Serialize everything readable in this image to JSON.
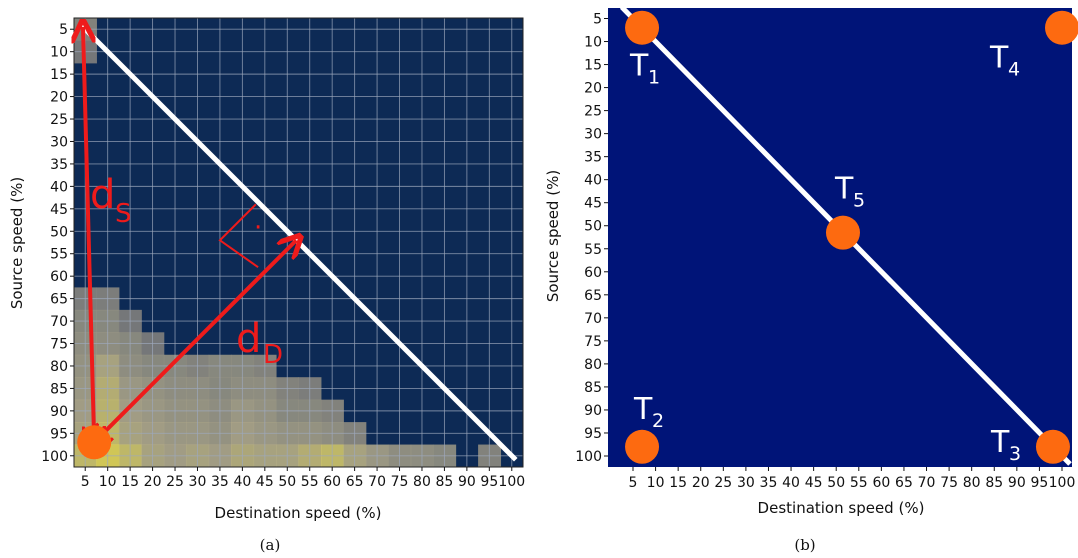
{
  "chart_data": [
    {
      "id": "a",
      "type": "heatmap",
      "caption": "(a)",
      "xlabel": "Destination speed (%)",
      "ylabel": "Source speed (%)",
      "x_ticks": [
        "5",
        "10",
        "15",
        "20",
        "25",
        "30",
        "35",
        "40",
        "45",
        "50",
        "55",
        "60",
        "65",
        "70",
        "75",
        "80",
        "85",
        "90",
        "95",
        "100"
      ],
      "y_ticks": [
        "5",
        "10",
        "15",
        "20",
        "25",
        "30",
        "35",
        "40",
        "45",
        "50",
        "55",
        "60",
        "65",
        "70",
        "75",
        "80",
        "85",
        "90",
        "95",
        "100"
      ],
      "grid": true,
      "colors": {
        "background": "#0d2a55",
        "grid": "#9ea9bd",
        "low": "#6c6f78",
        "mid": "#b1a98a",
        "high": "#f2e24a",
        "line": "#ffffff",
        "annotation": "#ee1b1b",
        "point": "#fd6a10"
      },
      "nonzero_cells": [
        {
          "x": 5,
          "y": 5,
          "v": 0.25
        },
        {
          "x": 5,
          "y": 10,
          "v": 0.15
        },
        {
          "x": 5,
          "y": 65,
          "v": 0.2
        },
        {
          "x": 10,
          "y": 65,
          "v": 0.2
        },
        {
          "x": 5,
          "y": 70,
          "v": 0.3
        },
        {
          "x": 10,
          "y": 70,
          "v": 0.3
        },
        {
          "x": 15,
          "y": 70,
          "v": 0.15
        },
        {
          "x": 5,
          "y": 75,
          "v": 0.35
        },
        {
          "x": 10,
          "y": 75,
          "v": 0.35
        },
        {
          "x": 15,
          "y": 75,
          "v": 0.3
        },
        {
          "x": 20,
          "y": 75,
          "v": 0.15
        },
        {
          "x": 5,
          "y": 80,
          "v": 0.4
        },
        {
          "x": 10,
          "y": 80,
          "v": 0.55
        },
        {
          "x": 15,
          "y": 80,
          "v": 0.35
        },
        {
          "x": 20,
          "y": 80,
          "v": 0.3
        },
        {
          "x": 25,
          "y": 80,
          "v": 0.3
        },
        {
          "x": 30,
          "y": 80,
          "v": 0.25
        },
        {
          "x": 35,
          "y": 80,
          "v": 0.3
        },
        {
          "x": 40,
          "y": 80,
          "v": 0.3
        },
        {
          "x": 45,
          "y": 80,
          "v": 0.25
        },
        {
          "x": 5,
          "y": 85,
          "v": 0.45
        },
        {
          "x": 10,
          "y": 85,
          "v": 0.65
        },
        {
          "x": 15,
          "y": 85,
          "v": 0.45
        },
        {
          "x": 20,
          "y": 85,
          "v": 0.4
        },
        {
          "x": 25,
          "y": 85,
          "v": 0.35
        },
        {
          "x": 30,
          "y": 85,
          "v": 0.35
        },
        {
          "x": 35,
          "y": 85,
          "v": 0.3
        },
        {
          "x": 40,
          "y": 85,
          "v": 0.35
        },
        {
          "x": 45,
          "y": 85,
          "v": 0.35
        },
        {
          "x": 50,
          "y": 85,
          "v": 0.25
        },
        {
          "x": 55,
          "y": 85,
          "v": 0.2
        },
        {
          "x": 5,
          "y": 90,
          "v": 0.5
        },
        {
          "x": 10,
          "y": 90,
          "v": 0.7
        },
        {
          "x": 15,
          "y": 90,
          "v": 0.5
        },
        {
          "x": 20,
          "y": 90,
          "v": 0.45
        },
        {
          "x": 25,
          "y": 90,
          "v": 0.4
        },
        {
          "x": 30,
          "y": 90,
          "v": 0.4
        },
        {
          "x": 35,
          "y": 90,
          "v": 0.35
        },
        {
          "x": 40,
          "y": 90,
          "v": 0.45
        },
        {
          "x": 45,
          "y": 90,
          "v": 0.4
        },
        {
          "x": 50,
          "y": 90,
          "v": 0.3
        },
        {
          "x": 55,
          "y": 90,
          "v": 0.3
        },
        {
          "x": 60,
          "y": 90,
          "v": 0.25
        },
        {
          "x": 5,
          "y": 95,
          "v": 0.55
        },
        {
          "x": 10,
          "y": 95,
          "v": 0.75
        },
        {
          "x": 15,
          "y": 95,
          "v": 0.55
        },
        {
          "x": 20,
          "y": 95,
          "v": 0.5
        },
        {
          "x": 25,
          "y": 95,
          "v": 0.45
        },
        {
          "x": 30,
          "y": 95,
          "v": 0.45
        },
        {
          "x": 35,
          "y": 95,
          "v": 0.4
        },
        {
          "x": 40,
          "y": 95,
          "v": 0.5
        },
        {
          "x": 45,
          "y": 95,
          "v": 0.45
        },
        {
          "x": 50,
          "y": 95,
          "v": 0.4
        },
        {
          "x": 55,
          "y": 95,
          "v": 0.4
        },
        {
          "x": 60,
          "y": 95,
          "v": 0.35
        },
        {
          "x": 65,
          "y": 95,
          "v": 0.25
        },
        {
          "x": 5,
          "y": 100,
          "v": 0.75
        },
        {
          "x": 10,
          "y": 100,
          "v": 0.9
        },
        {
          "x": 15,
          "y": 100,
          "v": 0.75
        },
        {
          "x": 20,
          "y": 100,
          "v": 0.55
        },
        {
          "x": 25,
          "y": 100,
          "v": 0.5
        },
        {
          "x": 30,
          "y": 100,
          "v": 0.55
        },
        {
          "x": 35,
          "y": 100,
          "v": 0.5
        },
        {
          "x": 40,
          "y": 100,
          "v": 0.6
        },
        {
          "x": 45,
          "y": 100,
          "v": 0.55
        },
        {
          "x": 50,
          "y": 100,
          "v": 0.55
        },
        {
          "x": 55,
          "y": 100,
          "v": 0.65
        },
        {
          "x": 60,
          "y": 100,
          "v": 0.75
        },
        {
          "x": 65,
          "y": 100,
          "v": 0.55
        },
        {
          "x": 70,
          "y": 100,
          "v": 0.45
        },
        {
          "x": 75,
          "y": 100,
          "v": 0.35
        },
        {
          "x": 80,
          "y": 100,
          "v": 0.35
        },
        {
          "x": 85,
          "y": 100,
          "v": 0.3
        },
        {
          "x": 95,
          "y": 100,
          "v": 0.25
        }
      ],
      "diagonal": {
        "from": {
          "x": 5,
          "y": 5
        },
        "to": {
          "x": 100,
          "y": 100
        }
      },
      "point": {
        "x": 7,
        "y": 97
      },
      "arrows": [
        {
          "name": "ds",
          "from": {
            "x": 7,
            "y": 97
          },
          "to": {
            "x": 4.5,
            "y": 4.5
          }
        },
        {
          "name": "dd",
          "from": {
            "x": 7,
            "y": 97
          },
          "to": {
            "x": 52,
            "y": 52
          }
        }
      ],
      "labels": {
        "ds_main": "d",
        "ds_sub": "S",
        "dd_main": "d",
        "dd_sub": "D",
        "right_angle_dot": "·"
      }
    },
    {
      "id": "b",
      "type": "scatter",
      "caption": "(b)",
      "xlabel": "Destination speed (%)",
      "ylabel": "Source speed (%)",
      "x_ticks": [
        "5",
        "10",
        "15",
        "20",
        "25",
        "30",
        "35",
        "40",
        "45",
        "50",
        "55",
        "60",
        "65",
        "70",
        "75",
        "80",
        "85",
        "90",
        "95",
        "100"
      ],
      "y_ticks": [
        "5",
        "10",
        "15",
        "20",
        "25",
        "30",
        "35",
        "40",
        "45",
        "50",
        "55",
        "60",
        "65",
        "70",
        "75",
        "80",
        "85",
        "90",
        "95",
        "100"
      ],
      "grid": false,
      "colors": {
        "background": "#001478",
        "line": "#ffffff",
        "point": "#fd6a10"
      },
      "diagonal": {
        "from": {
          "x": 2.5,
          "y": 2.5
        },
        "to": {
          "x": 100,
          "y": 100
        }
      },
      "points": [
        {
          "name": "T",
          "sub": "1",
          "x": 7,
          "y": 7
        },
        {
          "name": "T",
          "sub": "4",
          "x": 100,
          "y": 7
        },
        {
          "name": "T",
          "sub": "5",
          "x": 51.5,
          "y": 51.5
        },
        {
          "name": "T",
          "sub": "2",
          "x": 7,
          "y": 98
        },
        {
          "name": "T",
          "sub": "3",
          "x": 98,
          "y": 98
        }
      ]
    }
  ]
}
